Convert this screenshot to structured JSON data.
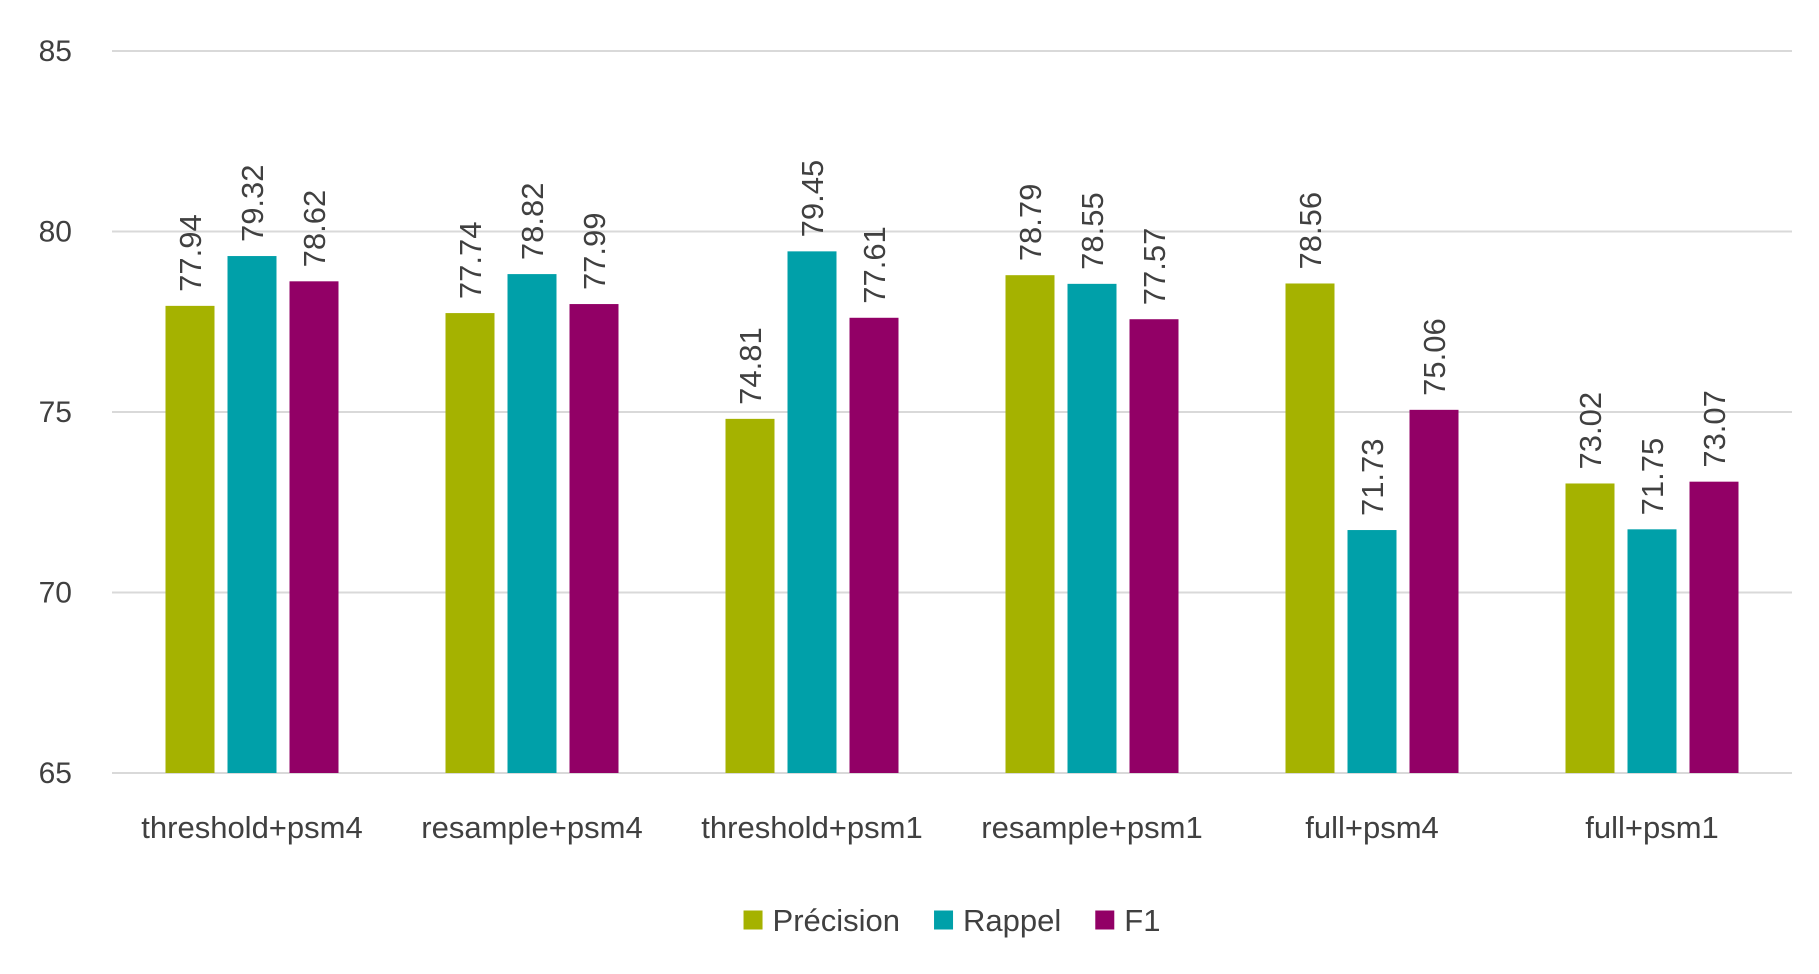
{
  "chart_data": {
    "type": "bar",
    "categories": [
      "threshold+psm4",
      "resample+psm4",
      "threshold+psm1",
      "resample+psm1",
      "full+psm4",
      "full+psm1"
    ],
    "series": [
      {
        "name": "Précision",
        "color": "#a5b200",
        "values": [
          77.94,
          77.74,
          74.81,
          78.79,
          78.56,
          73.02
        ]
      },
      {
        "name": "Rappel",
        "color": "#00a0a9",
        "values": [
          79.32,
          78.82,
          79.45,
          78.55,
          71.73,
          71.75
        ]
      },
      {
        "name": "F1",
        "color": "#920066",
        "values": [
          78.62,
          77.99,
          77.61,
          77.57,
          75.06,
          73.07
        ]
      }
    ],
    "value_labels": [
      [
        "77.94",
        "77.74",
        "74.81",
        "78.79",
        "78.56",
        "73.02"
      ],
      [
        "79.32",
        "78.82",
        "79.45",
        "78.55",
        "71.73",
        "71.75"
      ],
      [
        "78.62",
        "77.99",
        "77.61",
        "77.57",
        "75.06",
        "73.07"
      ]
    ],
    "ylim": [
      65,
      85
    ],
    "yticks": [
      "65",
      "70",
      "75",
      "80",
      "85"
    ],
    "grid": true,
    "legend_position": "bottom"
  }
}
